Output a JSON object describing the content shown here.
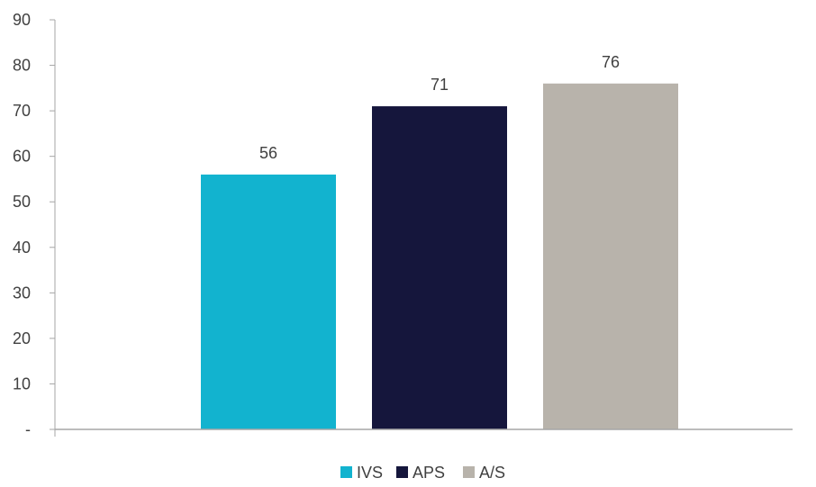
{
  "chart_data": {
    "type": "bar",
    "title": "",
    "xlabel": "",
    "ylabel": "",
    "categories": [
      "IVS",
      "APS",
      "A/S"
    ],
    "series": [
      {
        "name": "IVS",
        "color": "#12b3cf",
        "values": [
          56,
          null,
          null
        ]
      },
      {
        "name": "APS",
        "color": "#15163c",
        "values": [
          null,
          71,
          null
        ]
      },
      {
        "name": "A/S",
        "color": "#b8b3ab",
        "values": [
          null,
          null,
          76
        ]
      }
    ],
    "data_labels": [
      "56",
      "71",
      "76"
    ],
    "ylim": [
      0,
      90
    ],
    "yticks": [
      0,
      10,
      20,
      30,
      40,
      50,
      60,
      70,
      80,
      90
    ],
    "ytick_labels": [
      "-",
      "10",
      "20",
      "30",
      "40",
      "50",
      "60",
      "70",
      "80",
      "90"
    ],
    "grid": false,
    "legend_position": "bottom-center",
    "axis_color": "#a6a6a6",
    "text_color": "#404040"
  }
}
